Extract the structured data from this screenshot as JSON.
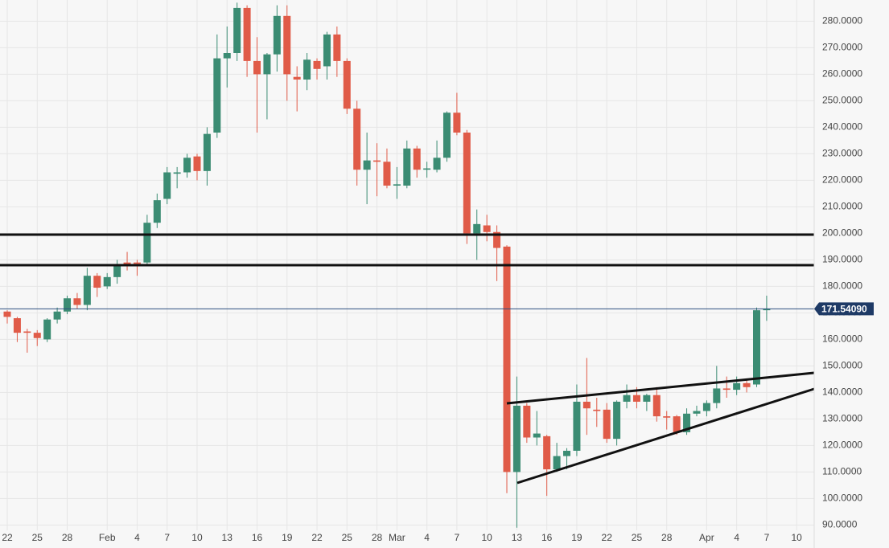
{
  "chart_data": {
    "type": "candlestick",
    "categories": [
      "22",
      null,
      null,
      "25",
      null,
      null,
      "28",
      null,
      null,
      null,
      "Feb",
      null,
      null,
      "4",
      null,
      null,
      "7",
      null,
      null,
      "10",
      null,
      null,
      "13",
      null,
      null,
      "16",
      null,
      null,
      "19",
      null,
      null,
      "22",
      null,
      null,
      "25",
      null,
      null,
      "28",
      null,
      "Mar",
      null,
      null,
      "4",
      null,
      null,
      "7",
      null,
      null,
      "10",
      null,
      null,
      "13",
      null,
      null,
      "16",
      null,
      null,
      "19",
      null,
      null,
      "22",
      null,
      null,
      "25",
      null,
      null,
      "28",
      null,
      null,
      null,
      "Apr",
      null,
      null,
      "4",
      null,
      null,
      "7",
      null,
      null,
      "10"
    ],
    "open": [
      170.5,
      168,
      163,
      162.5,
      160,
      167.5,
      170.5,
      175.5,
      173,
      184,
      180,
      183.5,
      189,
      189,
      189,
      204,
      213,
      222.5,
      223,
      229,
      223.5,
      238,
      266,
      268,
      285,
      265,
      260,
      267.5,
      282,
      259,
      258,
      265,
      263,
      275,
      265,
      247,
      224,
      227.5,
      227,
      218,
      218,
      232,
      224,
      224,
      228.5,
      245.5,
      238,
      200,
      203,
      200.5,
      195,
      110,
      135,
      123,
      123.5,
      111,
      116,
      118,
      136.5,
      133.5,
      133.5,
      122.5,
      136.5,
      139,
      136.5,
      139,
      131,
      131,
      125,
      132,
      133,
      136,
      141.5,
      141,
      143.5,
      143,
      171,
      null,
      null,
      null
    ],
    "high": [
      171,
      168.5,
      164,
      163.5,
      168,
      172,
      176.5,
      177.5,
      187,
      185,
      185,
      190,
      193,
      190,
      207,
      215,
      225,
      225,
      230,
      230,
      240,
      275,
      278,
      287,
      286,
      274,
      268,
      286,
      286,
      263,
      268,
      266,
      276,
      278,
      266,
      250,
      238,
      234,
      232,
      225,
      235,
      233,
      227,
      235,
      246,
      253,
      239,
      209,
      207,
      203,
      195.5,
      146,
      136,
      133,
      124,
      121,
      119,
      143,
      153,
      138,
      136,
      137,
      143,
      142,
      139.5,
      142,
      133,
      131.5,
      134,
      135,
      137,
      150,
      146,
      146,
      145,
      172,
      176.5,
      null,
      null,
      null
    ],
    "low": [
      166,
      159,
      155,
      157.5,
      159,
      166,
      169.5,
      171.5,
      171,
      176,
      179,
      181,
      186,
      184,
      188,
      202,
      211,
      217,
      221,
      220,
      218,
      236,
      255,
      265,
      259,
      238,
      243,
      261,
      250,
      246,
      254,
      258,
      258,
      259,
      245,
      218,
      211,
      214,
      217,
      213,
      217,
      221,
      221,
      223,
      227,
      237,
      196,
      190,
      197,
      182,
      102,
      89,
      121,
      120,
      101,
      110,
      111,
      116,
      124,
      127,
      121,
      120,
      134,
      134,
      133,
      129,
      126,
      124,
      124,
      131,
      131,
      134,
      138,
      139,
      140,
      142,
      167,
      null,
      null,
      null
    ],
    "close": [
      168.5,
      162.5,
      162.5,
      160.5,
      167.5,
      170.5,
      175.5,
      173,
      184,
      179.5,
      183.5,
      188,
      188,
      188.5,
      204,
      212.5,
      223,
      223,
      228.5,
      223.5,
      237.5,
      266,
      268,
      285,
      265,
      260,
      267.5,
      282,
      260,
      258,
      265.5,
      262,
      275,
      265,
      247,
      224,
      227.5,
      227,
      218,
      218.5,
      232,
      224,
      224.5,
      228.5,
      245.5,
      238,
      200,
      203.5,
      200.5,
      194.5,
      110,
      135,
      123,
      124.5,
      111,
      116,
      118,
      136.5,
      134,
      133,
      122.5,
      136.5,
      139,
      136.5,
      139,
      131,
      130.5,
      125,
      132,
      133,
      136,
      141.5,
      141,
      143.5,
      142,
      171,
      171.5409,
      null,
      null,
      null
    ],
    "up_color": "#3b8c73",
    "down_color": "#e05b48",
    "ylim": [
      88,
      288
    ],
    "yticks": [
      {
        "value": 90,
        "label": "90.0000"
      },
      {
        "value": 100,
        "label": "100.0000"
      },
      {
        "value": 110,
        "label": "110.0000"
      },
      {
        "value": 120,
        "label": "120.0000"
      },
      {
        "value": 130,
        "label": "130.0000"
      },
      {
        "value": 140,
        "label": "140.0000"
      },
      {
        "value": 150,
        "label": "150.0000"
      },
      {
        "value": 160,
        "label": "160.0000"
      },
      {
        "value": 170,
        "label": "170.0000"
      },
      {
        "value": 180,
        "label": "180.0000"
      },
      {
        "value": 190,
        "label": "190.0000"
      },
      {
        "value": 200,
        "label": "200.0000"
      },
      {
        "value": 210,
        "label": "210.0000"
      },
      {
        "value": 220,
        "label": "220.0000"
      },
      {
        "value": 230,
        "label": "230.0000"
      },
      {
        "value": 240,
        "label": "240.0000"
      },
      {
        "value": 250,
        "label": "250.0000"
      },
      {
        "value": 260,
        "label": "260.0000"
      },
      {
        "value": 270,
        "label": "270.0000"
      },
      {
        "value": 280,
        "label": "280.0000"
      }
    ],
    "last_price": {
      "value": 171.5409,
      "label": "171.54090"
    },
    "grid": true
  }
}
